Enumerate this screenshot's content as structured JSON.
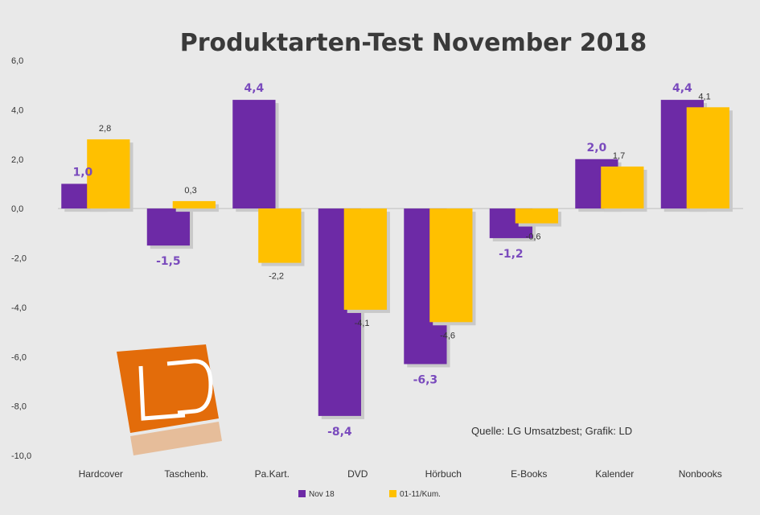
{
  "chart_data": {
    "type": "bar",
    "title": "Produktarten-Test November 2018",
    "categories": [
      "Hardcover",
      "Taschenb.",
      "Pa.Kart.",
      "DVD",
      "Hörbuch",
      "E-Books",
      "Kalender",
      "Nonbooks"
    ],
    "series": [
      {
        "name": "Nov 18",
        "values": [
          1.0,
          -1.5,
          4.4,
          -8.4,
          -6.3,
          -1.2,
          2.0,
          4.4
        ],
        "labels": [
          "1,0",
          "-1,5",
          "4,4",
          "-8,4",
          "-6,3",
          "-1,2",
          "2,0",
          "4,4"
        ],
        "color": "#6d2aa6"
      },
      {
        "name": "01-11/Kum.",
        "values": [
          2.8,
          0.3,
          -2.2,
          -4.1,
          -4.6,
          -0.6,
          1.7,
          4.1
        ],
        "labels": [
          "2,8",
          "0,3",
          "-2,2",
          "-4,1",
          "-4,6",
          "-0,6",
          "1,7",
          "4,1"
        ],
        "color": "#ffc000"
      }
    ],
    "ylim": [
      -10,
      6
    ],
    "yticks": [
      6,
      4,
      2,
      0,
      -2,
      -4,
      -6,
      -8,
      -10
    ],
    "ytick_labels": [
      "6,0",
      "4,0",
      "2,0",
      "0,0",
      "-2,0",
      "-4,0",
      "-6,0",
      "-8,0",
      "-10,0"
    ],
    "xlabel": "",
    "ylabel": "",
    "grid": false,
    "legend": "bottom-center",
    "source": "Quelle: LG Umsatzbest; Grafik: LD",
    "logo_text": "LD"
  }
}
